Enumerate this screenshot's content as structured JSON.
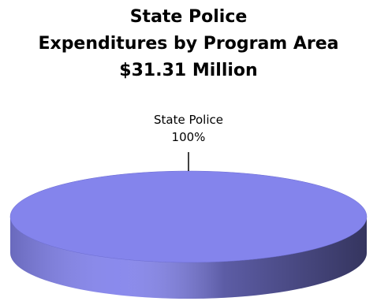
{
  "chart_data": {
    "type": "pie",
    "title": [
      "State Police",
      "Expenditures by Program Area",
      "$31.31 Million"
    ],
    "categories": [
      "State Police"
    ],
    "values": [
      100
    ],
    "value_labels": [
      "100%"
    ],
    "colors": [
      "#8484ec"
    ]
  }
}
